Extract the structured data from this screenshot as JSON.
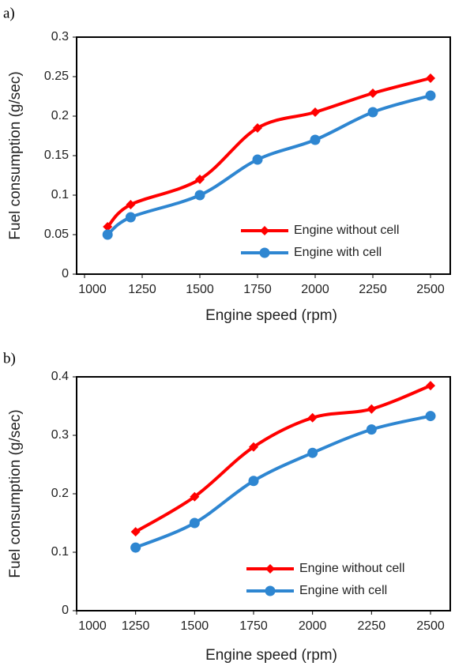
{
  "chart_data": [
    {
      "type": "line",
      "label": "a)",
      "xlabel": "Engine speed (rpm)",
      "ylabel": "Fuel consumption (g/sec)",
      "xlim": [
        1000,
        2500
      ],
      "xticks": [
        1000,
        1250,
        1500,
        1750,
        2000,
        2250,
        2500
      ],
      "ylim": [
        0,
        0.3
      ],
      "yticks": [
        0,
        0.05,
        0.1,
        0.15,
        0.2,
        0.25,
        0.3
      ],
      "legend": "lower right",
      "series": [
        {
          "name": "Engine without cell",
          "color": "#ff0000",
          "marker": "diamond",
          "x": [
            1100,
            1200,
            1500,
            1750,
            2000,
            2250,
            2500
          ],
          "values": [
            0.06,
            0.088,
            0.12,
            0.185,
            0.205,
            0.229,
            0.248
          ]
        },
        {
          "name": "Engine with cell",
          "color": "#2e86d1",
          "marker": "circle",
          "x": [
            1100,
            1200,
            1500,
            1750,
            2000,
            2250,
            2500
          ],
          "values": [
            0.05,
            0.072,
            0.1,
            0.145,
            0.17,
            0.205,
            0.226
          ]
        }
      ]
    },
    {
      "type": "line",
      "label": "b)",
      "xlabel": "Engine speed (rpm)",
      "ylabel": "Fuel consumption (g/sec)",
      "xlim": [
        1000,
        2500
      ],
      "xticks": [
        1000,
        1250,
        1500,
        1750,
        2000,
        2250,
        2500
      ],
      "ylim": [
        0,
        0.4
      ],
      "yticks": [
        0,
        0.1,
        0.2,
        0.3,
        0.4
      ],
      "legend": "lower right",
      "series": [
        {
          "name": "Engine without cell",
          "color": "#ff0000",
          "marker": "diamond",
          "x": [
            1250,
            1500,
            1750,
            2000,
            2250,
            2500
          ],
          "values": [
            0.135,
            0.195,
            0.28,
            0.33,
            0.345,
            0.385
          ]
        },
        {
          "name": "Engine with cell",
          "color": "#2e86d1",
          "marker": "circle",
          "x": [
            1250,
            1500,
            1750,
            2000,
            2250,
            2500
          ],
          "values": [
            0.108,
            0.15,
            0.222,
            0.27,
            0.31,
            0.333
          ]
        }
      ]
    }
  ]
}
